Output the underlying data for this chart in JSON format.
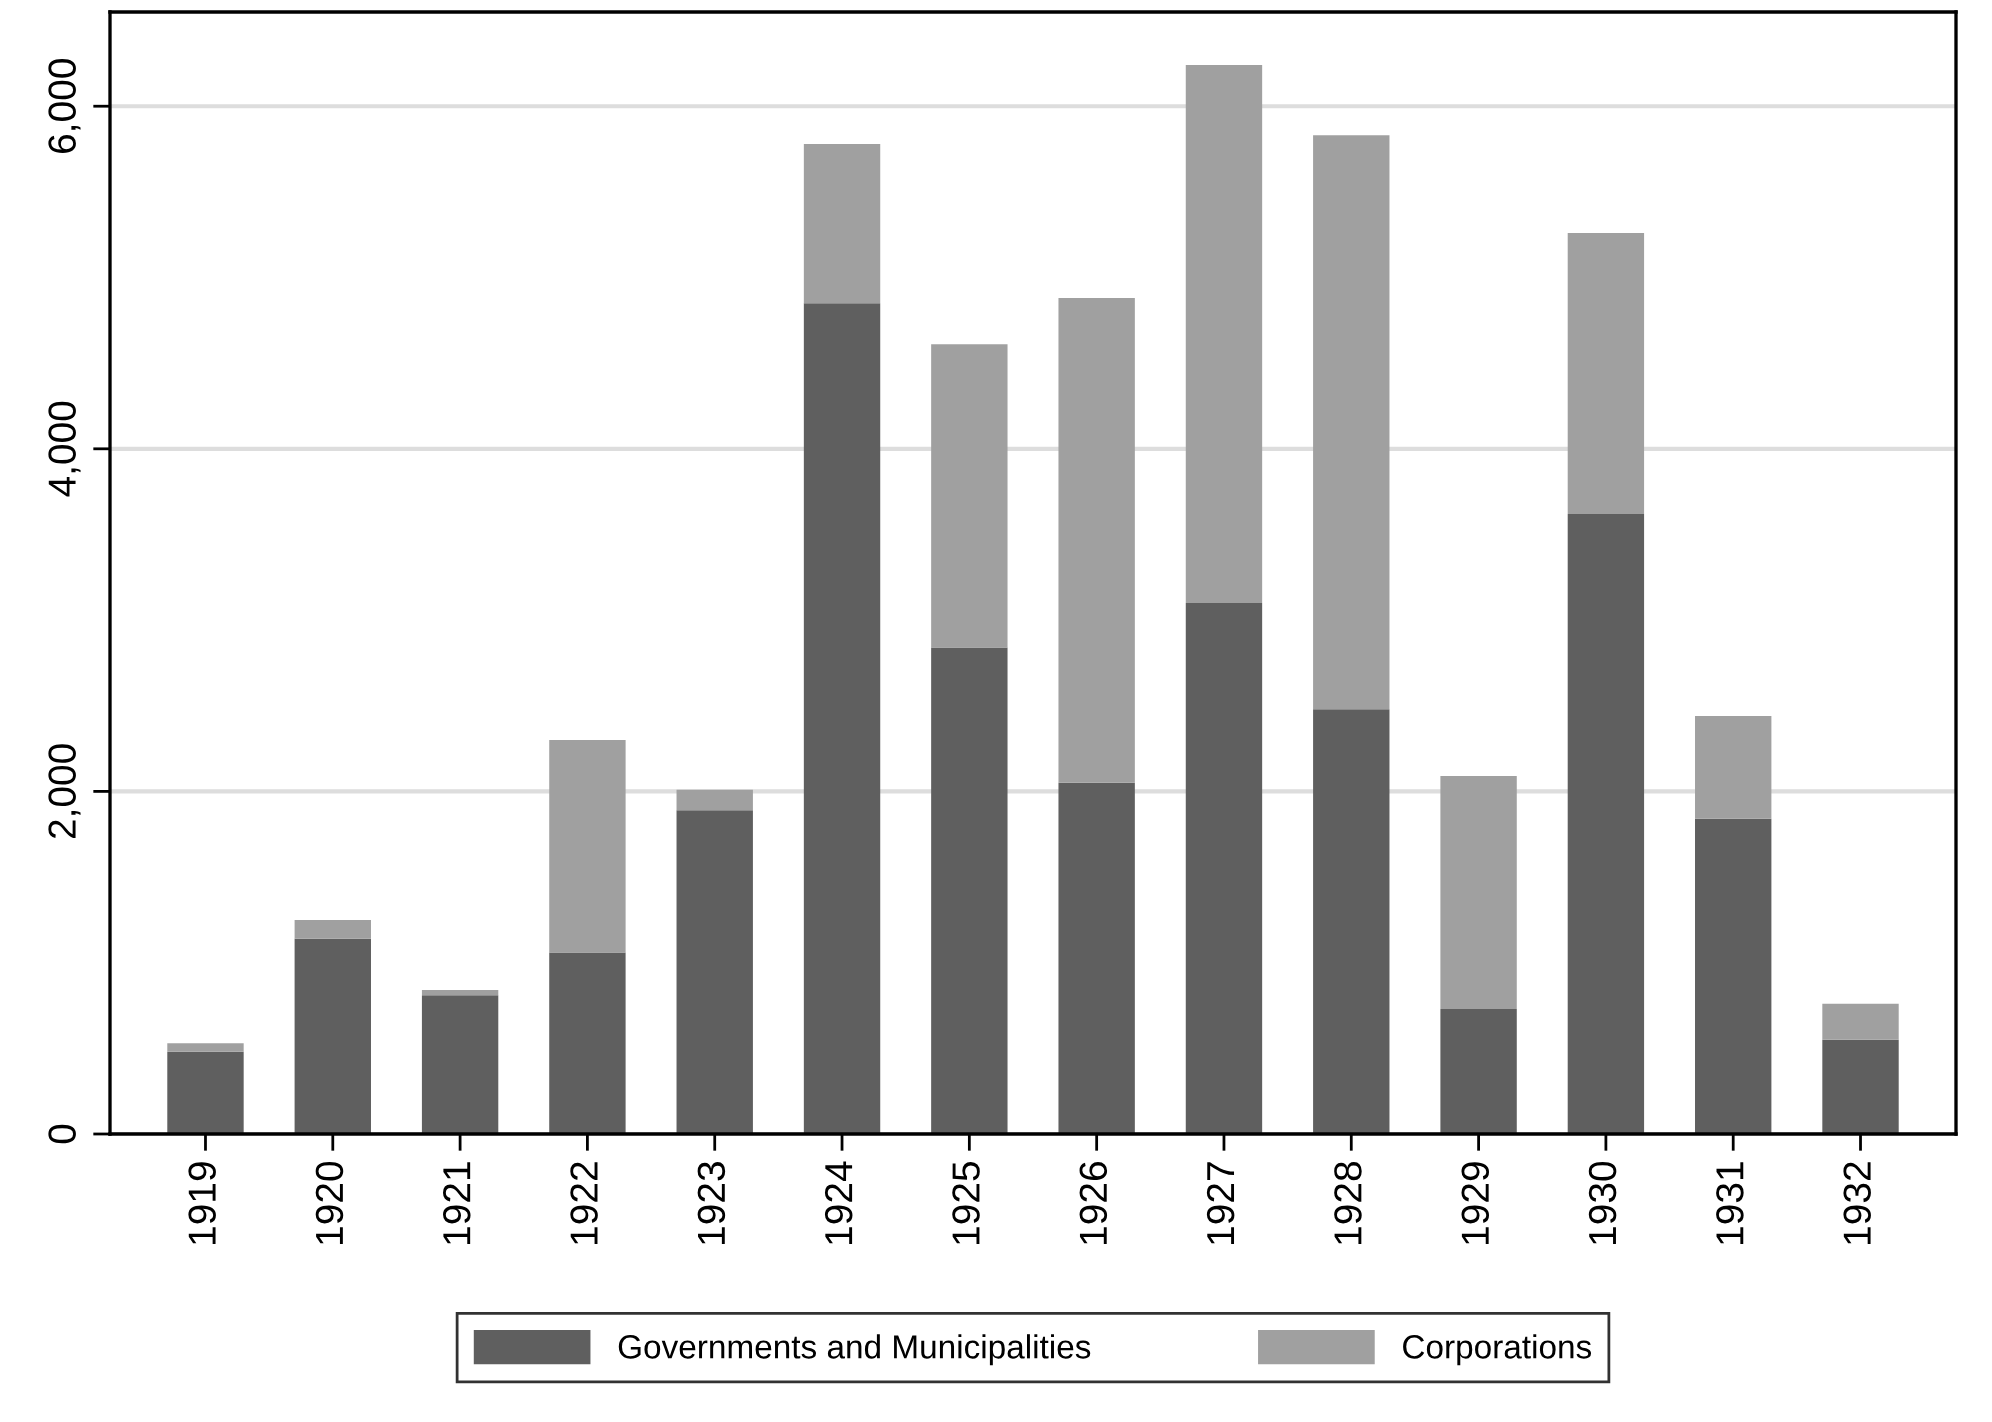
{
  "chart_data": {
    "type": "bar",
    "stacked": true,
    "categories": [
      "1919",
      "1920",
      "1921",
      "1922",
      "1923",
      "1924",
      "1925",
      "1926",
      "1927",
      "1928",
      "1929",
      "1930",
      "1931",
      "1932"
    ],
    "series": [
      {
        "name": "Governments and Municipalities",
        "color": "#5f5f5f",
        "values": [
          480,
          1140,
          810,
          1060,
          1890,
          4850,
          2840,
          2050,
          3100,
          2480,
          730,
          3620,
          1840,
          550
        ]
      },
      {
        "name": "Corporations",
        "color": "#a0a0a0",
        "values": [
          50,
          110,
          30,
          1240,
          120,
          930,
          1770,
          2830,
          3140,
          3350,
          1360,
          1640,
          600,
          210
        ]
      }
    ],
    "ylim": [
      0,
      6550
    ],
    "yticks": [
      {
        "value": 0,
        "label": "0"
      },
      {
        "value": 2000,
        "label": "2,000"
      },
      {
        "value": 4000,
        "label": "4,000"
      },
      {
        "value": 6000,
        "label": "6,000"
      }
    ],
    "grid": "y",
    "legend": "bottom"
  }
}
